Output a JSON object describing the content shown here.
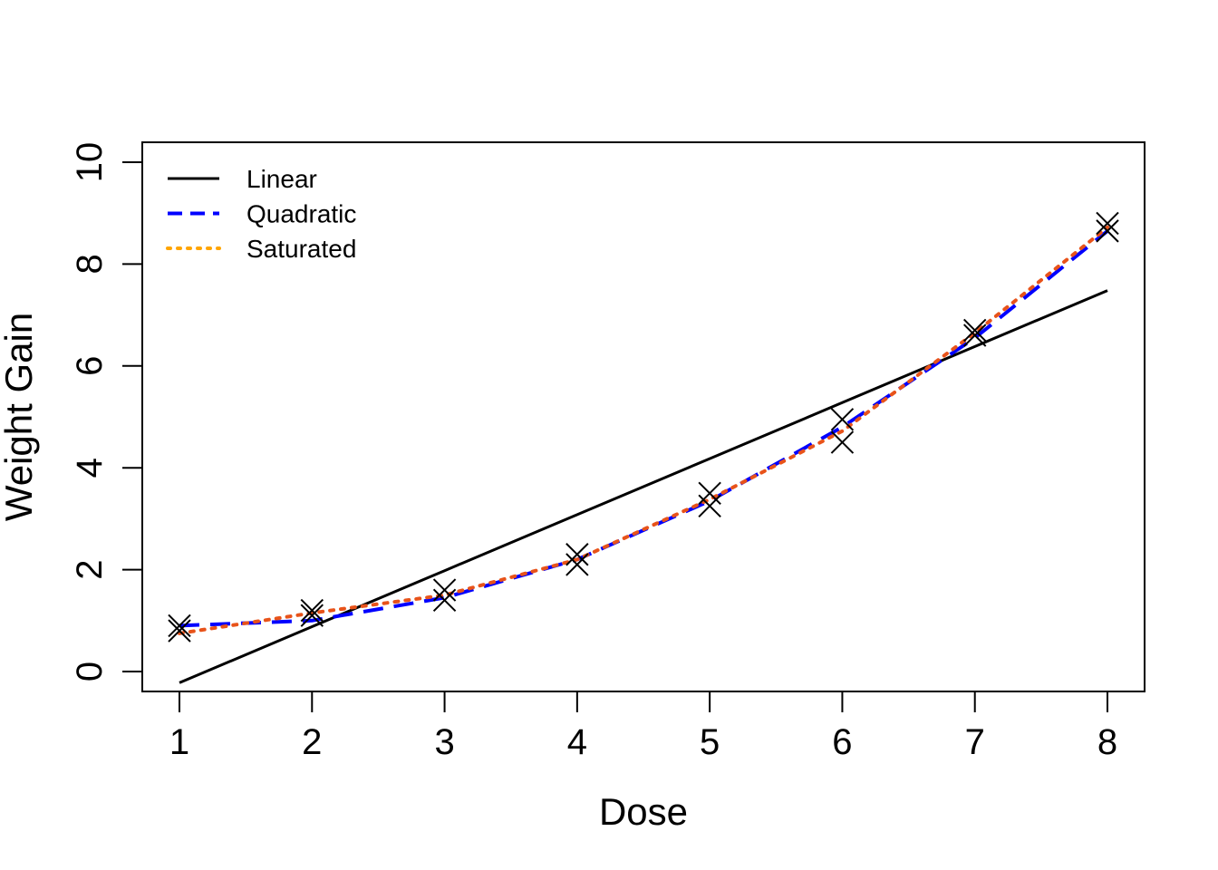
{
  "chart_data": {
    "type": "line",
    "xlabel": "Dose",
    "ylabel": "Weight Gain",
    "xlim": [
      1,
      8
    ],
    "ylim": [
      0,
      10
    ],
    "x_ticks": [
      "1",
      "2",
      "3",
      "4",
      "5",
      "6",
      "7",
      "8"
    ],
    "y_ticks": [
      "0",
      "2",
      "4",
      "6",
      "8",
      "10"
    ],
    "grid": false,
    "legend_position": "top-left",
    "observations": {
      "marker": "x",
      "x": [
        1,
        1,
        2,
        2,
        3,
        3,
        4,
        4,
        5,
        5,
        6,
        6,
        7,
        7,
        8,
        8
      ],
      "y": [
        0.8,
        0.9,
        1.1,
        1.2,
        1.4,
        1.6,
        2.1,
        2.3,
        3.25,
        3.5,
        4.5,
        4.95,
        6.6,
        6.7,
        8.65,
        8.8
      ]
    },
    "series": [
      {
        "name": "Linear",
        "color": "#000000",
        "style": "solid",
        "x": [
          1,
          2,
          3,
          4,
          5,
          6,
          7,
          8
        ],
        "y": [
          -0.22,
          0.88,
          1.98,
          3.08,
          4.18,
          5.28,
          6.38,
          7.48
        ]
      },
      {
        "name": "Quadratic",
        "color": "#0000FF",
        "style": "dashed",
        "x": [
          1,
          2,
          3,
          4,
          5,
          6,
          7,
          8
        ],
        "y": [
          0.9,
          1.0,
          1.45,
          2.2,
          3.35,
          4.8,
          6.55,
          8.65
        ]
      },
      {
        "name": "Saturated",
        "color": "#FFA500",
        "style": "dotted",
        "x": [
          1,
          2,
          3,
          4,
          5,
          6,
          7,
          8
        ],
        "y": [
          0.75,
          1.15,
          1.5,
          2.2,
          3.38,
          4.72,
          6.65,
          8.72
        ]
      }
    ]
  }
}
